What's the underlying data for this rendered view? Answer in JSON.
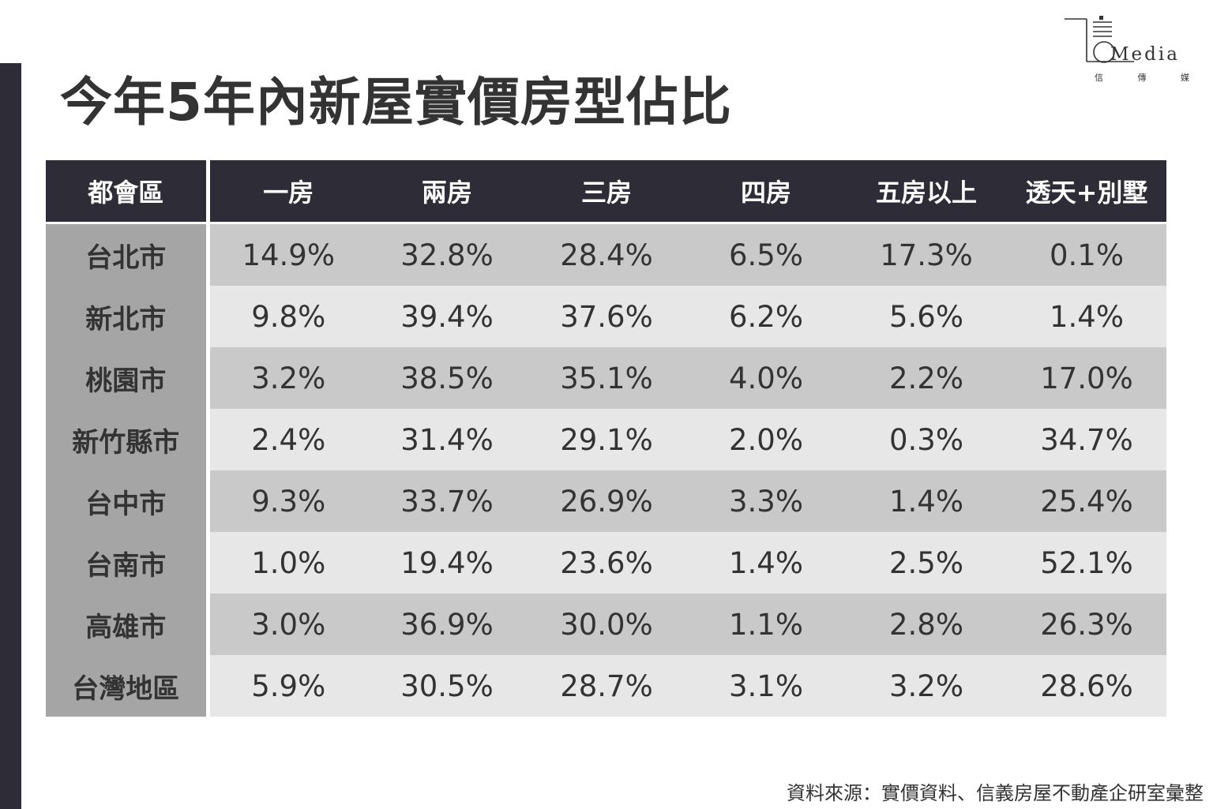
{
  "title": "今年5年內新屋實價房型佔比",
  "logo": {
    "word": "Media",
    "sub": [
      "信",
      "傳",
      "媒"
    ]
  },
  "source": "資料來源：實價資料、信義房屋不動產企研室彙整",
  "chart_data": {
    "type": "table",
    "title": "今年5年內新屋實價房型佔比",
    "columns": [
      "都會區",
      "一房",
      "兩房",
      "三房",
      "四房",
      "五房以上",
      "透天+別墅"
    ],
    "rows": [
      [
        "台北市",
        "14.9%",
        "32.8%",
        "28.4%",
        "6.5%",
        "17.3%",
        "0.1%"
      ],
      [
        "新北市",
        "9.8%",
        "39.4%",
        "37.6%",
        "6.2%",
        "5.6%",
        "1.4%"
      ],
      [
        "桃園市",
        "3.2%",
        "38.5%",
        "35.1%",
        "4.0%",
        "2.2%",
        "17.0%"
      ],
      [
        "新竹縣市",
        "2.4%",
        "31.4%",
        "29.1%",
        "2.0%",
        "0.3%",
        "34.7%"
      ],
      [
        "台中市",
        "9.3%",
        "33.7%",
        "26.9%",
        "3.3%",
        "1.4%",
        "25.4%"
      ],
      [
        "台南市",
        "1.0%",
        "19.4%",
        "23.6%",
        "1.4%",
        "2.5%",
        "52.1%"
      ],
      [
        "高雄市",
        "3.0%",
        "36.9%",
        "30.0%",
        "1.1%",
        "2.8%",
        "26.3%"
      ],
      [
        "台灣地區",
        "5.9%",
        "30.5%",
        "28.7%",
        "3.1%",
        "3.2%",
        "28.6%"
      ]
    ]
  },
  "colors": {
    "header_bg": "#2e2c37",
    "region_bg": "#a5a5a5",
    "row_dark": "#c9c9c9",
    "row_light": "#e7e7e7",
    "text": "#333333"
  }
}
